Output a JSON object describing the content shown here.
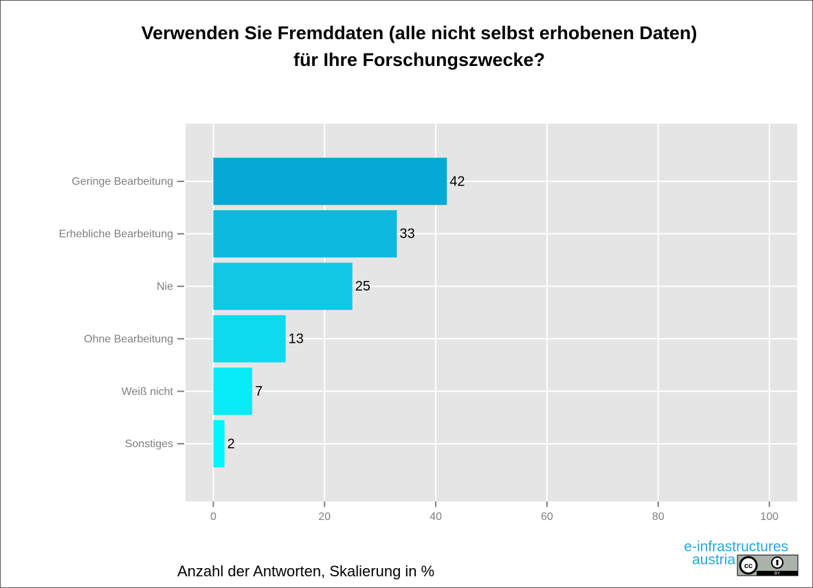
{
  "chart_data": {
    "type": "barh",
    "title": [
      "Verwenden Sie Fremddaten (alle nicht selbst erhobenen Daten)",
      "für Ihre Forschungszwecke?"
    ],
    "categories": [
      "Geringe Bearbeitung",
      "Erhebliche Bearbeitung",
      "Nie",
      "Ohne Bearbeitung",
      "Weiß nicht ",
      "Sonstiges"
    ],
    "values": [
      42,
      33,
      25,
      13,
      7,
      2
    ],
    "colors": [
      "#06a8d4",
      "#0cb8de",
      "#10c7e6",
      "#0ddaf0",
      "#07ecf8",
      "#02f4fe"
    ],
    "xlim": [
      -5,
      105
    ],
    "xticks": [
      0,
      20,
      40,
      60,
      80,
      100
    ],
    "grid": true,
    "caption": "Anzahl der Antworten, Skalierung in %",
    "logo": [
      "e-infrastructures",
      "austria"
    ],
    "badge": "BY"
  }
}
